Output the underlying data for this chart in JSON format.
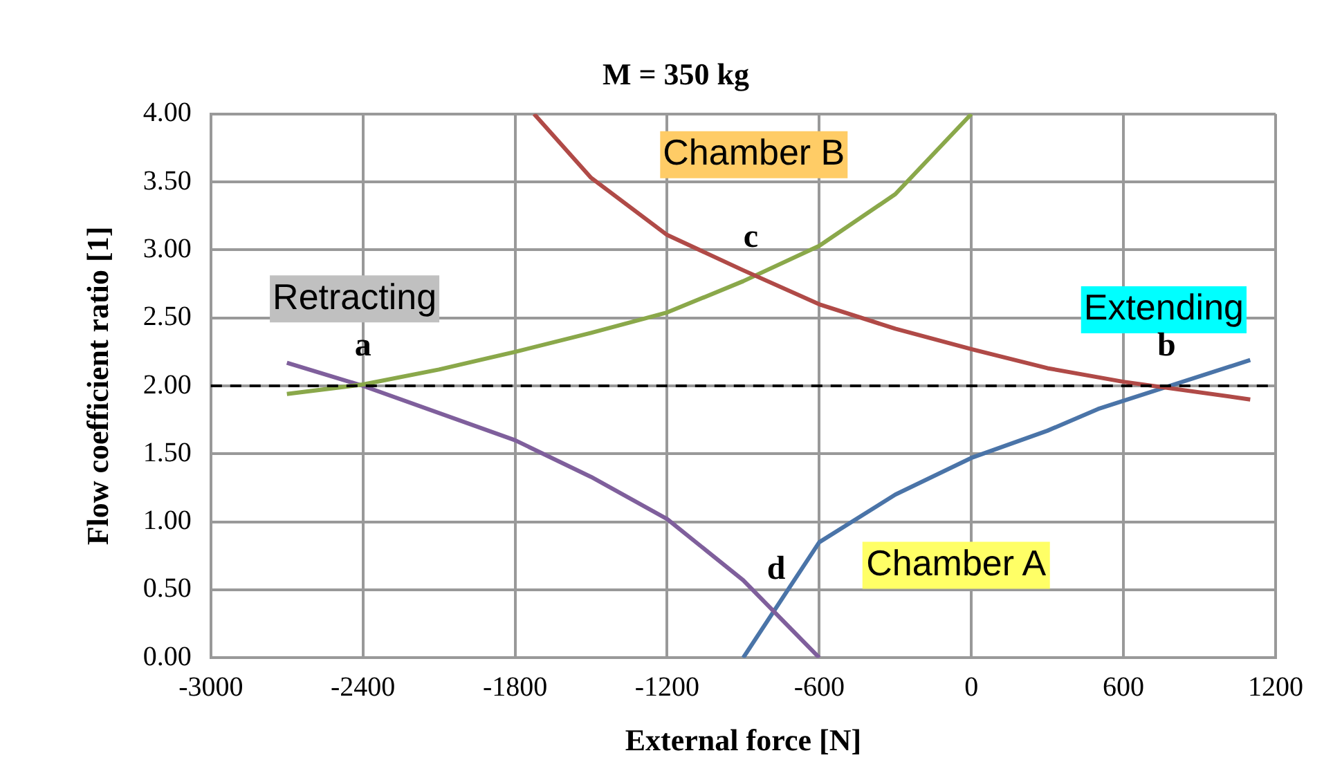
{
  "chart_data": {
    "type": "line",
    "title": "M = 350 kg",
    "xlabel": "External force [N]",
    "ylabel": "Flow coefficient ratio [1]",
    "xlim": [
      -3000,
      1200
    ],
    "xticks": [
      -3000,
      -2400,
      -1800,
      -1200,
      -600,
      0,
      600,
      1200
    ],
    "ylim": [
      0,
      4
    ],
    "yticks": [
      {
        "value": 0,
        "label": "0.00"
      },
      {
        "value": 0.5,
        "label": "0.50"
      },
      {
        "value": 1,
        "label": "1.00"
      },
      {
        "value": 1.5,
        "label": "1.50"
      },
      {
        "value": 2,
        "label": "2.00"
      },
      {
        "value": 2.5,
        "label": "2.50"
      },
      {
        "value": 3,
        "label": "3.00"
      },
      {
        "value": 3.5,
        "label": "3.50"
      },
      {
        "value": 4,
        "label": "4.00"
      }
    ],
    "grid": true,
    "legend": false,
    "marker": "none",
    "line_style": "solid",
    "series": [
      {
        "color": "#b04a47",
        "x": [
          -1725,
          -1500,
          -1200,
          -900,
          -600,
          -300,
          0,
          300,
          600,
          1100
        ],
        "values": [
          4.0,
          3.53,
          3.11,
          2.85,
          2.6,
          2.42,
          2.27,
          2.13,
          2.03,
          1.9
        ]
      },
      {
        "color": "#8aa84a",
        "x": [
          -2700,
          -2400,
          -2100,
          -1800,
          -1500,
          -1200,
          -900,
          -600,
          -300,
          0
        ],
        "values": [
          1.94,
          2.01,
          2.12,
          2.25,
          2.39,
          2.54,
          2.77,
          3.03,
          3.41,
          4.0
        ]
      },
      {
        "color": "#7f5f9c",
        "x": [
          -2700,
          -2400,
          -1800,
          -1500,
          -1200,
          -900,
          -600
        ],
        "values": [
          2.17,
          2.0,
          1.6,
          1.33,
          1.02,
          0.57,
          0
        ]
      },
      {
        "color": "#4a74a8",
        "x": [
          -900,
          -600,
          -300,
          0,
          300,
          500,
          1100
        ],
        "values": [
          0,
          0.85,
          1.2,
          1.47,
          1.67,
          1.83,
          2.19
        ]
      }
    ],
    "ref_lines": [
      {
        "axis": "y",
        "value": 2,
        "color": "#000000",
        "line_style": "dashed"
      }
    ],
    "annotations": [
      "Chamber B",
      "Retracting",
      "Extending",
      "Chamber A",
      {
        "text": "a",
        "x": -2400,
        "y": 2.0
      },
      {
        "text": "c",
        "x": -870,
        "y": 2.8
      },
      {
        "text": "b",
        "x": 770,
        "y": 2.0
      },
      {
        "text": "d",
        "x": -770,
        "y": 0.36
      }
    ]
  }
}
